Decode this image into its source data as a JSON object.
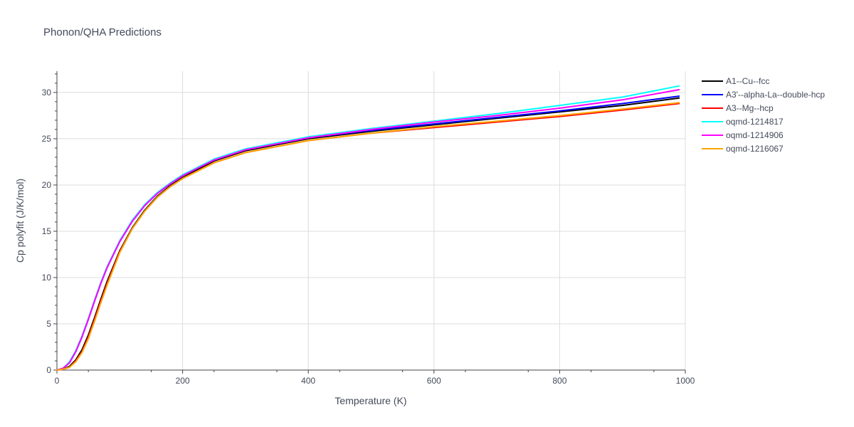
{
  "chart_data": {
    "type": "line",
    "title": "Phonon/QHA Predictions",
    "xlabel": "Temperature (K)",
    "ylabel": "Cp polyfit (J/K/mol)",
    "xlim": [
      0,
      1000
    ],
    "ylim": [
      0,
      32.3
    ],
    "xticks": [
      0,
      200,
      400,
      600,
      800,
      1000
    ],
    "yticks": [
      0,
      5,
      10,
      15,
      20,
      25,
      30
    ],
    "grid": true,
    "legend_position": "top-right, outside plot",
    "x": [
      0,
      10,
      20,
      30,
      40,
      50,
      60,
      70,
      80,
      100,
      120,
      140,
      160,
      180,
      200,
      250,
      300,
      400,
      500,
      600,
      700,
      800,
      900,
      990
    ],
    "series": [
      {
        "name": "A1--Cu--fcc",
        "color": "#000000",
        "values": [
          0,
          0.1,
          0.4,
          1.1,
          2.2,
          3.8,
          5.7,
          7.7,
          9.6,
          12.9,
          15.4,
          17.3,
          18.8,
          19.9,
          20.8,
          22.6,
          23.7,
          25.0,
          25.8,
          26.5,
          27.2,
          27.9,
          28.6,
          29.4
        ]
      },
      {
        "name": "A3'--alpha-La--double-hcp",
        "color": "#0000ff",
        "values": [
          0,
          0.2,
          0.8,
          2.0,
          3.6,
          5.5,
          7.5,
          9.4,
          11.1,
          13.9,
          16.1,
          17.8,
          19.1,
          20.1,
          21.0,
          22.7,
          23.8,
          25.1,
          25.9,
          26.6,
          27.3,
          28.0,
          28.8,
          29.6
        ]
      },
      {
        "name": "A3--Mg--hcp",
        "color": "#ff0000",
        "values": [
          0,
          0.1,
          0.3,
          1.0,
          2.0,
          3.6,
          5.5,
          7.5,
          9.4,
          12.8,
          15.3,
          17.2,
          18.7,
          19.8,
          20.7,
          22.4,
          23.5,
          24.8,
          25.6,
          26.2,
          26.8,
          27.4,
          28.1,
          28.8
        ]
      },
      {
        "name": "oqmd-1214817",
        "color": "#00ffff",
        "values": [
          0,
          0.2,
          0.9,
          2.1,
          3.7,
          5.6,
          7.6,
          9.5,
          11.2,
          14.0,
          16.2,
          17.9,
          19.2,
          20.2,
          21.1,
          22.8,
          23.9,
          25.2,
          26.1,
          26.9,
          27.7,
          28.6,
          29.5,
          30.7
        ]
      },
      {
        "name": "oqmd-1214906",
        "color": "#ff00ff",
        "values": [
          0,
          0.2,
          0.8,
          2.0,
          3.6,
          5.5,
          7.5,
          9.4,
          11.1,
          13.9,
          16.1,
          17.8,
          19.1,
          20.1,
          21.0,
          22.7,
          23.8,
          25.1,
          26.0,
          26.8,
          27.5,
          28.3,
          29.2,
          30.3
        ]
      },
      {
        "name": "oqmd-1216067",
        "color": "#ffa500",
        "values": [
          0,
          0.1,
          0.3,
          0.9,
          1.9,
          3.4,
          5.3,
          7.3,
          9.2,
          12.7,
          15.3,
          17.2,
          18.7,
          19.8,
          20.7,
          22.4,
          23.5,
          24.8,
          25.6,
          26.3,
          26.9,
          27.5,
          28.2,
          28.9
        ]
      }
    ]
  }
}
